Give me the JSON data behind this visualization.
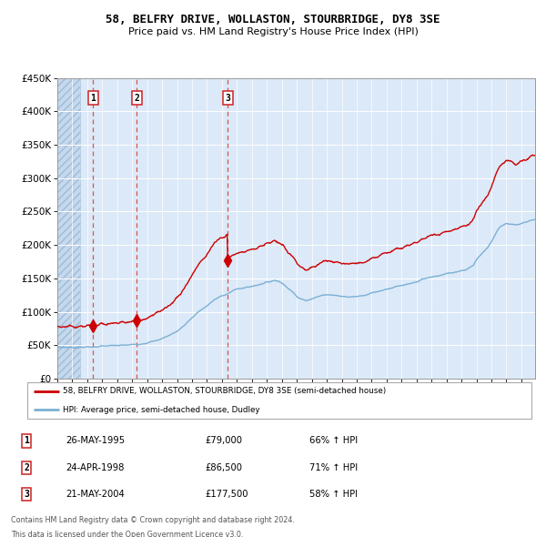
{
  "title_line1": "58, BELFRY DRIVE, WOLLASTON, STOURBRIDGE, DY8 3SE",
  "title_line2": "Price paid vs. HM Land Registry's House Price Index (HPI)",
  "legend_red": "58, BELFRY DRIVE, WOLLASTON, STOURBRIDGE, DY8 3SE (semi-detached house)",
  "legend_blue": "HPI: Average price, semi-detached house, Dudley",
  "footnote1": "Contains HM Land Registry data © Crown copyright and database right 2024.",
  "footnote2": "This data is licensed under the Open Government Licence v3.0.",
  "purchases": [
    {
      "num": "1",
      "date": "26-MAY-1995",
      "price": "£79,000",
      "year": 1995.38,
      "price_val": 79000,
      "hpi_pct": "66% ↑ HPI"
    },
    {
      "num": "2",
      "date": "24-APR-1998",
      "price": "£86,500",
      "year": 1998.3,
      "price_val": 86500,
      "hpi_pct": "71% ↑ HPI"
    },
    {
      "num": "3",
      "date": "21-MAY-2004",
      "price": "£177,500",
      "year": 2004.38,
      "price_val": 177500,
      "hpi_pct": "58% ↑ HPI"
    }
  ],
  "bg_color": "#dce9f8",
  "hatch_region_end": 1994.5,
  "red_line_color": "#cc0000",
  "blue_line_color": "#7ab0d4",
  "grid_color": "#ffffff",
  "ylim": [
    0,
    450000
  ],
  "yticks": [
    0,
    50000,
    100000,
    150000,
    200000,
    250000,
    300000,
    350000,
    400000,
    450000
  ],
  "xlim_start": 1993.0,
  "xlim_end": 2024.92,
  "purchase_vline_color": "#e05050",
  "marker_color": "#cc0000",
  "box_edge_color": "#cc2222"
}
